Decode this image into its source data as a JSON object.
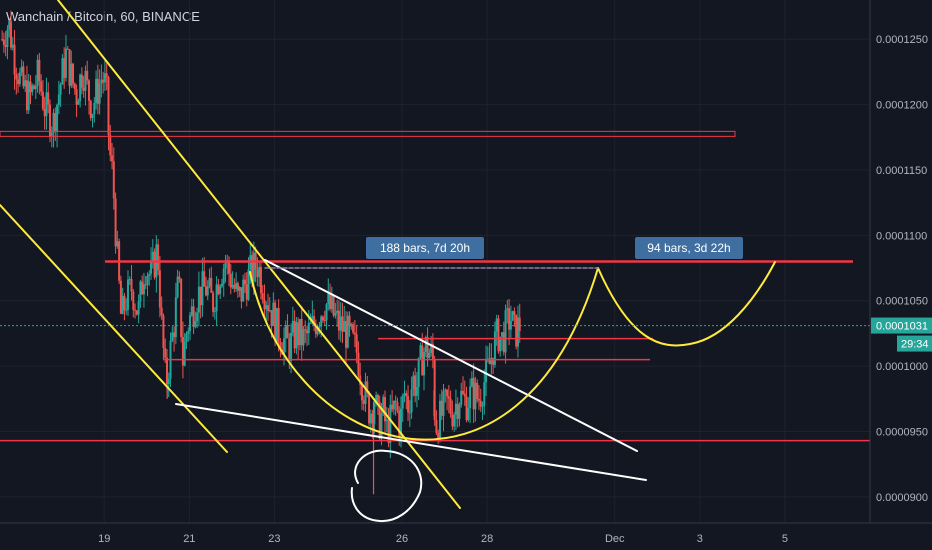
{
  "chart_data": {
    "type": "candlestick",
    "title": "Wanchain / Bitcoin, 60, BINANCE",
    "price_axis": {
      "ticks": [
        {
          "value": 0.000125,
          "label": "0.0001250"
        },
        {
          "value": 0.00012,
          "label": "0.0001200"
        },
        {
          "value": 0.000115,
          "label": "0.0001150"
        },
        {
          "value": 0.00011,
          "label": "0.0001100"
        },
        {
          "value": 0.000105,
          "label": "0.0001050"
        },
        {
          "value": 0.0001,
          "label": "0.0001000"
        },
        {
          "value": 9.5e-05,
          "label": "0.0000950"
        },
        {
          "value": 9e-05,
          "label": "0.0000900"
        }
      ],
      "range": [
        8.8e-05,
        0.000128
      ]
    },
    "time_axis": {
      "ticks": [
        {
          "day": 19,
          "label": "19"
        },
        {
          "day": 21,
          "label": "21"
        },
        {
          "day": 23,
          "label": "23"
        },
        {
          "day": 26,
          "label": "26"
        },
        {
          "day": 28,
          "label": "28"
        },
        {
          "day": 31,
          "label": "Dec"
        },
        {
          "day": 33,
          "label": "3"
        },
        {
          "day": 35,
          "label": "5"
        }
      ],
      "range": [
        16.55,
        37.0
      ]
    },
    "last_price": {
      "value": 0.0001031,
      "label": "0.0001031",
      "countdown": "29:34"
    },
    "measure_labels": [
      "188 bars, 7d 20h",
      "94 bars, 3d 22h"
    ],
    "horizontal_levels": [
      0.0001178,
      0.000108,
      0.0001021,
      0.0001005,
      9.43e-05
    ],
    "price_path": [
      [
        16.6,
        0.000125
      ],
      [
        16.75,
        0.0001262
      ],
      [
        16.9,
        0.0001235
      ],
      [
        17.05,
        0.0001215
      ],
      [
        17.25,
        0.0001205
      ],
      [
        17.45,
        0.0001222
      ],
      [
        17.6,
        0.0001198
      ],
      [
        17.8,
        0.0001185
      ],
      [
        17.95,
        0.0001212
      ],
      [
        18.1,
        0.0001238
      ],
      [
        18.25,
        0.0001218
      ],
      [
        18.35,
        0.0001208
      ],
      [
        18.5,
        0.0001228
      ],
      [
        18.6,
        0.0001212
      ],
      [
        18.72,
        0.0001198
      ],
      [
        18.85,
        0.0001212
      ],
      [
        18.95,
        0.0001222
      ],
      [
        19.05,
        0.0001212
      ],
      [
        19.12,
        0.0001165
      ],
      [
        19.2,
        0.0001145
      ],
      [
        19.3,
        0.0001085
      ],
      [
        19.4,
        0.0001035
      ],
      [
        19.5,
        0.000105
      ],
      [
        19.65,
        0.000106
      ],
      [
        19.8,
        0.000104
      ],
      [
        19.95,
        0.0001078
      ],
      [
        20.1,
        0.0001068
      ],
      [
        20.25,
        0.000109
      ],
      [
        20.35,
        0.000103
      ],
      [
        20.45,
        9.85e-05
      ],
      [
        20.55,
        0.000101
      ],
      [
        20.65,
        0.0001035
      ],
      [
        20.75,
        0.0001065
      ],
      [
        20.85,
        0.0001005
      ],
      [
        20.95,
        0.000103
      ],
      [
        21.05,
        0.000104
      ],
      [
        21.2,
        0.0001055
      ],
      [
        21.4,
        0.000106
      ],
      [
        21.55,
        0.0001048
      ],
      [
        21.7,
        0.000107
      ],
      [
        21.85,
        0.000108
      ],
      [
        22.0,
        0.0001065
      ],
      [
        22.15,
        0.000105
      ],
      [
        22.3,
        0.0001062
      ],
      [
        22.45,
        0.0001072
      ],
      [
        22.6,
        0.0001078
      ],
      [
        22.75,
        0.000106
      ],
      [
        22.9,
        0.0001045
      ],
      [
        23.05,
        0.000103
      ],
      [
        23.2,
        0.000102
      ],
      [
        23.35,
        0.0001015
      ],
      [
        23.5,
        0.0001025
      ],
      [
        23.7,
        0.000102
      ],
      [
        23.9,
        0.000103
      ],
      [
        24.05,
        0.000104
      ],
      [
        24.2,
        0.0001048
      ],
      [
        24.35,
        0.0001042
      ],
      [
        24.5,
        0.0001032
      ],
      [
        24.65,
        0.0001028
      ],
      [
        24.8,
        0.000102
      ],
      [
        24.95,
        0.000101
      ],
      [
        25.05,
        9.9e-05
      ],
      [
        25.15,
        9.75e-05
      ],
      [
        25.25,
        9.65e-05
      ],
      [
        25.35,
        9.75e-05
      ],
      [
        25.45,
        9.55e-05
      ],
      [
        25.55,
        9.65e-05
      ],
      [
        25.65,
        9.5e-05
      ],
      [
        25.75,
        9.6e-05
      ],
      [
        25.85,
        9.7e-05
      ],
      [
        25.95,
        9.55e-05
      ],
      [
        26.05,
        9.8e-05
      ],
      [
        26.15,
        9.7e-05
      ],
      [
        26.25,
        9.9e-05
      ],
      [
        26.35,
        9.85e-05
      ],
      [
        26.45,
        0.0001005
      ],
      [
        26.55,
        0.0001015
      ],
      [
        26.65,
        0.000101
      ],
      [
        26.72,
        0.0001008
      ],
      [
        26.78,
        9.55e-05
      ],
      [
        26.9,
        9.6e-05
      ],
      [
        27.05,
        9.72e-05
      ],
      [
        27.2,
        9.65e-05
      ],
      [
        27.35,
        9.78e-05
      ],
      [
        27.5,
        9.72e-05
      ],
      [
        27.65,
        9.8e-05
      ],
      [
        27.8,
        9.75e-05
      ],
      [
        27.95,
        9.9e-05
      ],
      [
        28.05,
        0.0001
      ],
      [
        28.15,
        0.0001015
      ],
      [
        28.25,
        0.0001025
      ],
      [
        28.35,
        0.000102
      ],
      [
        28.45,
        0.000103
      ],
      [
        28.55,
        0.0001038
      ],
      [
        28.65,
        0.0001025
      ],
      [
        28.78,
        0.0001032
      ]
    ]
  }
}
